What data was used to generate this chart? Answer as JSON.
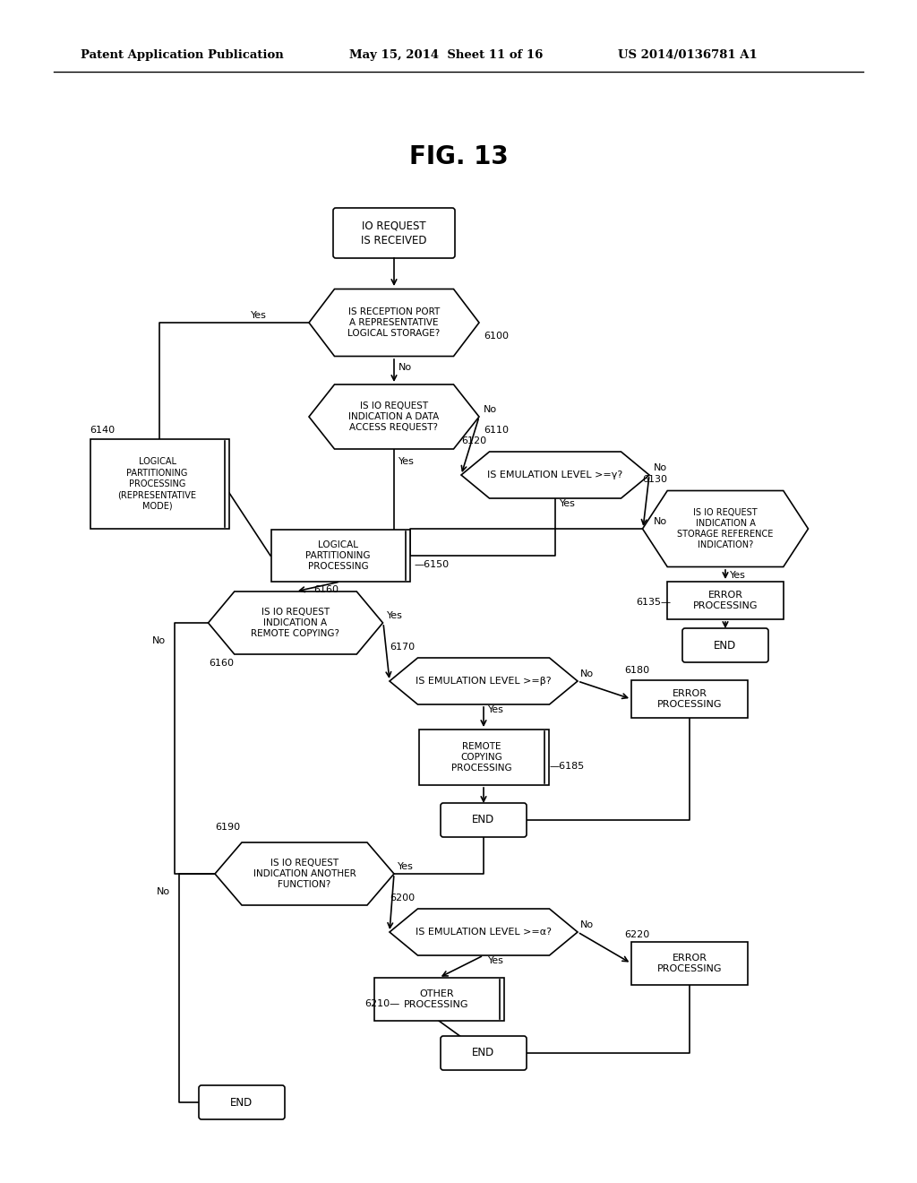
{
  "title": "FIG. 13",
  "header_left": "Patent Application Publication",
  "header_mid": "May 15, 2014  Sheet 11 of 16",
  "header_right": "US 2014/0136781 A1",
  "bg_color": "#ffffff"
}
